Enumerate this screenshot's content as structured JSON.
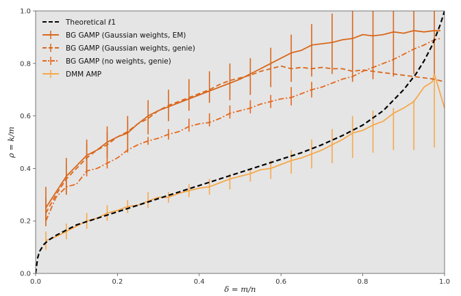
{
  "chart_data": {
    "type": "line",
    "title": "",
    "xlabel": "δ = m/n",
    "ylabel": "ρ = k/m",
    "xlim": [
      0.0,
      1.0
    ],
    "ylim": [
      0.0,
      1.0
    ],
    "xticks": [
      "0.0",
      "0.2",
      "0.4",
      "0.6",
      "0.8",
      "1.0"
    ],
    "yticks": [
      "0.0",
      "0.2",
      "0.4",
      "0.6",
      "0.8",
      "1.0"
    ],
    "grid": false,
    "background": "#e5e5e5",
    "legend_position": "top-left",
    "series": [
      {
        "name": "Theoretical ℓ1",
        "color": "#000000",
        "dash": "dashed",
        "errorbars": false,
        "x": [
          0.0,
          0.005,
          0.01,
          0.02,
          0.03,
          0.05,
          0.075,
          0.1,
          0.15,
          0.2,
          0.25,
          0.3,
          0.35,
          0.4,
          0.45,
          0.5,
          0.55,
          0.6,
          0.65,
          0.7,
          0.75,
          0.8,
          0.85,
          0.9,
          0.93,
          0.95,
          0.97,
          0.98,
          0.99,
          1.0
        ],
        "y": [
          0.0,
          0.06,
          0.085,
          0.11,
          0.125,
          0.145,
          0.165,
          0.185,
          0.21,
          0.235,
          0.26,
          0.285,
          0.31,
          0.335,
          0.36,
          0.385,
          0.41,
          0.435,
          0.46,
          0.49,
          0.525,
          0.565,
          0.62,
          0.7,
          0.76,
          0.81,
          0.87,
          0.91,
          0.95,
          1.0
        ]
      },
      {
        "name": "BG GAMP (Gaussian weights, EM)",
        "color": "#d9661a",
        "dash": "solid",
        "errorbars": true,
        "x": [
          0.025,
          0.05,
          0.075,
          0.1,
          0.125,
          0.15,
          0.175,
          0.2,
          0.225,
          0.25,
          0.275,
          0.3,
          0.325,
          0.35,
          0.375,
          0.4,
          0.425,
          0.45,
          0.475,
          0.5,
          0.525,
          0.55,
          0.575,
          0.6,
          0.625,
          0.65,
          0.675,
          0.7,
          0.725,
          0.75,
          0.775,
          0.8,
          0.825,
          0.85,
          0.875,
          0.9,
          0.925,
          0.95,
          0.975,
          0.99
        ],
        "y": [
          0.25,
          0.31,
          0.37,
          0.41,
          0.45,
          0.47,
          0.5,
          0.52,
          0.535,
          0.57,
          0.6,
          0.62,
          0.635,
          0.65,
          0.665,
          0.68,
          0.695,
          0.71,
          0.725,
          0.74,
          0.76,
          0.78,
          0.8,
          0.82,
          0.84,
          0.85,
          0.87,
          0.875,
          0.88,
          0.89,
          0.895,
          0.91,
          0.905,
          0.91,
          0.92,
          0.915,
          0.925,
          0.92,
          0.925,
          0.925
        ],
        "err_x": [
          0.025,
          0.075,
          0.125,
          0.175,
          0.225,
          0.275,
          0.325,
          0.375,
          0.425,
          0.475,
          0.525,
          0.575,
          0.625,
          0.675,
          0.725,
          0.775,
          0.825,
          0.875,
          0.925,
          0.975
        ],
        "err_low": [
          0.18,
          0.3,
          0.38,
          0.45,
          0.47,
          0.53,
          0.58,
          0.62,
          0.65,
          0.66,
          0.68,
          0.71,
          0.73,
          0.75,
          0.76,
          0.73,
          0.74,
          0.75,
          0.76,
          0.76
        ],
        "err_high": [
          0.33,
          0.44,
          0.51,
          0.56,
          0.6,
          0.66,
          0.7,
          0.74,
          0.77,
          0.8,
          0.82,
          0.86,
          0.91,
          0.95,
          0.99,
          1.0,
          1.0,
          1.0,
          1.0,
          1.0
        ]
      },
      {
        "name": "BG GAMP (Gaussian weights, genie)",
        "color": "#d9661a",
        "dash": "dashed",
        "errorbars": true,
        "x": [
          0.025,
          0.05,
          0.075,
          0.1,
          0.125,
          0.15,
          0.175,
          0.2,
          0.225,
          0.25,
          0.275,
          0.3,
          0.325,
          0.35,
          0.375,
          0.4,
          0.425,
          0.45,
          0.475,
          0.5,
          0.525,
          0.55,
          0.575,
          0.6,
          0.625,
          0.65,
          0.675,
          0.7,
          0.725,
          0.75,
          0.775,
          0.8,
          0.825,
          0.85,
          0.875,
          0.9,
          0.925,
          0.95,
          0.975,
          1.0
        ],
        "y": [
          0.23,
          0.3,
          0.36,
          0.4,
          0.44,
          0.47,
          0.49,
          0.52,
          0.54,
          0.57,
          0.59,
          0.62,
          0.64,
          0.655,
          0.67,
          0.685,
          0.7,
          0.72,
          0.735,
          0.745,
          0.755,
          0.77,
          0.78,
          0.79,
          0.78,
          0.785,
          0.78,
          0.785,
          0.78,
          0.78,
          0.77,
          0.775,
          0.77,
          0.765,
          0.76,
          0.755,
          0.75,
          0.745,
          0.74,
          0.73
        ],
        "err_x": [
          0.025,
          0.075,
          0.125,
          0.175,
          0.225
        ],
        "err_low": [
          0.2,
          0.3,
          0.39,
          0.44,
          0.49
        ],
        "err_high": [
          0.29,
          0.42,
          0.49,
          0.54,
          0.58
        ]
      },
      {
        "name": "BG GAMP (no weights, genie)",
        "color": "#e66619",
        "dash": "dashdot",
        "errorbars": true,
        "x": [
          0.025,
          0.05,
          0.075,
          0.1,
          0.125,
          0.15,
          0.175,
          0.2,
          0.225,
          0.25,
          0.275,
          0.3,
          0.325,
          0.35,
          0.375,
          0.4,
          0.425,
          0.45,
          0.475,
          0.5,
          0.525,
          0.55,
          0.575,
          0.6,
          0.625,
          0.65,
          0.675,
          0.7,
          0.725,
          0.75,
          0.775,
          0.8,
          0.825,
          0.85,
          0.875,
          0.9,
          0.925,
          0.95,
          0.975,
          0.99
        ],
        "y": [
          0.2,
          0.29,
          0.33,
          0.34,
          0.39,
          0.4,
          0.42,
          0.44,
          0.47,
          0.49,
          0.505,
          0.515,
          0.53,
          0.54,
          0.56,
          0.57,
          0.575,
          0.59,
          0.61,
          0.62,
          0.63,
          0.645,
          0.655,
          0.665,
          0.67,
          0.685,
          0.7,
          0.71,
          0.725,
          0.74,
          0.75,
          0.77,
          0.785,
          0.8,
          0.815,
          0.835,
          0.855,
          0.87,
          0.89,
          0.895
        ],
        "err_x": [
          0.075,
          0.125,
          0.175,
          0.225,
          0.275,
          0.325,
          0.375,
          0.425,
          0.475,
          0.525,
          0.575,
          0.625,
          0.675
        ],
        "err_low": [
          0.31,
          0.37,
          0.4,
          0.46,
          0.49,
          0.51,
          0.54,
          0.56,
          0.59,
          0.61,
          0.63,
          0.64,
          0.67
        ],
        "err_high": [
          0.36,
          0.41,
          0.45,
          0.49,
          0.52,
          0.55,
          0.59,
          0.61,
          0.64,
          0.66,
          0.68,
          0.71,
          0.73
        ]
      },
      {
        "name": "DMM AMP",
        "color": "#f5a84a",
        "dash": "solid",
        "errorbars": true,
        "x": [
          0.025,
          0.05,
          0.075,
          0.1,
          0.125,
          0.15,
          0.175,
          0.2,
          0.225,
          0.25,
          0.275,
          0.3,
          0.325,
          0.35,
          0.375,
          0.4,
          0.425,
          0.45,
          0.475,
          0.5,
          0.525,
          0.55,
          0.575,
          0.6,
          0.625,
          0.65,
          0.675,
          0.7,
          0.725,
          0.75,
          0.775,
          0.8,
          0.825,
          0.85,
          0.875,
          0.9,
          0.925,
          0.95,
          0.97,
          0.975,
          1.0
        ],
        "y": [
          0.125,
          0.14,
          0.16,
          0.18,
          0.2,
          0.21,
          0.23,
          0.24,
          0.255,
          0.26,
          0.275,
          0.29,
          0.29,
          0.305,
          0.315,
          0.325,
          0.33,
          0.345,
          0.36,
          0.37,
          0.38,
          0.395,
          0.4,
          0.415,
          0.43,
          0.44,
          0.455,
          0.47,
          0.49,
          0.51,
          0.535,
          0.545,
          0.565,
          0.58,
          0.61,
          0.63,
          0.655,
          0.71,
          0.73,
          0.76,
          0.63
        ],
        "err_x": [
          0.025,
          0.075,
          0.125,
          0.175,
          0.225,
          0.275,
          0.325,
          0.375,
          0.425,
          0.475,
          0.525,
          0.575,
          0.625,
          0.675,
          0.725,
          0.775,
          0.825,
          0.875,
          0.925,
          0.975
        ],
        "err_low": [
          0.09,
          0.13,
          0.17,
          0.2,
          0.23,
          0.25,
          0.27,
          0.29,
          0.3,
          0.32,
          0.35,
          0.36,
          0.38,
          0.4,
          0.42,
          0.44,
          0.46,
          0.47,
          0.47,
          0.48
        ],
        "err_high": [
          0.16,
          0.19,
          0.23,
          0.26,
          0.28,
          0.31,
          0.31,
          0.34,
          0.36,
          0.38,
          0.4,
          0.43,
          0.47,
          0.51,
          0.55,
          0.6,
          0.62,
          0.63,
          0.66,
          0.74
        ]
      }
    ]
  }
}
